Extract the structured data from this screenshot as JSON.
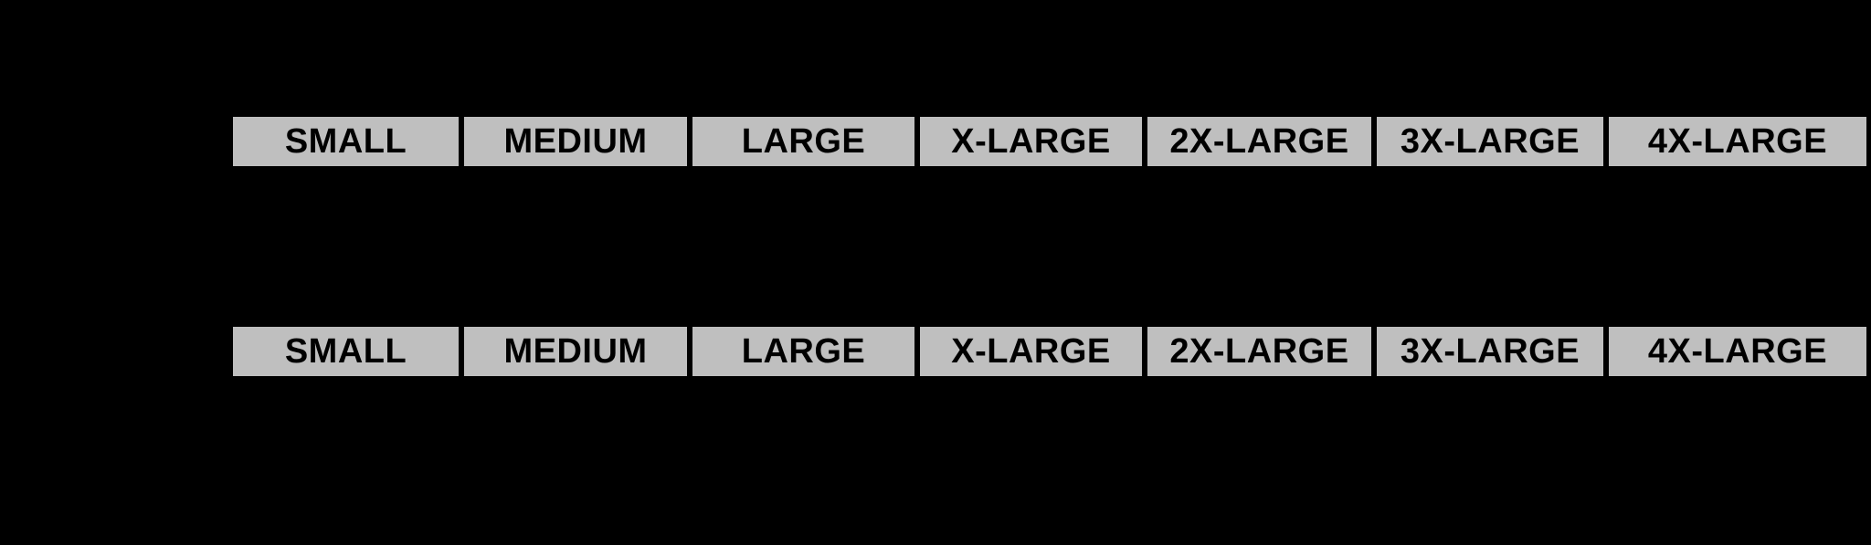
{
  "page": {
    "background_color": "#000000"
  },
  "size_chart": {
    "cell_fill_color": "#BFBFBF",
    "divider_color": "#000000",
    "text_color": "#000000",
    "sizes": [
      "SMALL",
      "MEDIUM",
      "LARGE",
      "X-LARGE",
      "2X-LARGE",
      "3X-LARGE",
      "4X-LARGE"
    ]
  },
  "chart_data": {
    "type": "table",
    "header_rows": [
      [
        "SMALL",
        "MEDIUM",
        "LARGE",
        "X-LARGE",
        "2X-LARGE",
        "3X-LARGE",
        "4X-LARGE"
      ],
      [
        "SMALL",
        "MEDIUM",
        "LARGE",
        "X-LARGE",
        "2X-LARGE",
        "3X-LARGE",
        "4X-LARGE"
      ]
    ],
    "layout": {
      "grid": "off",
      "rows_visible": 2,
      "columns": 7
    }
  }
}
